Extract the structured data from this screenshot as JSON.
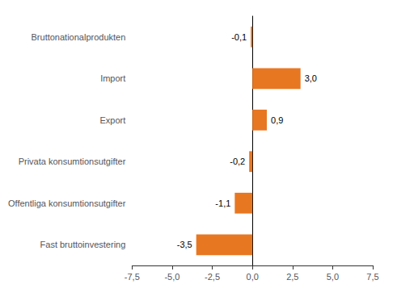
{
  "chart_data": {
    "type": "bar",
    "orientation": "horizontal",
    "categories": [
      "Fast bruttoinvestering",
      "Offentliga konsumtionsutgifter",
      "Privata konsumtionsutgifter",
      "Export",
      "Import",
      "Bruttonationalprodukten"
    ],
    "values": [
      -3.5,
      -1.1,
      -0.2,
      0.9,
      3.0,
      -0.1
    ],
    "value_labels": [
      "-3,5",
      "-1,1",
      "-0,2",
      "0,9",
      "3,0",
      "-0,1"
    ],
    "data_labels": true,
    "color": "#E87722",
    "xlim": [
      -7.5,
      7.5
    ],
    "xticks": [
      {
        "value": -7.5,
        "label": "-7,5"
      },
      {
        "value": -5.0,
        "label": "-5,0"
      },
      {
        "value": -2.5,
        "label": "-2,5"
      },
      {
        "value": 0.0,
        "label": "0,0"
      },
      {
        "value": 2.5,
        "label": "2,5"
      },
      {
        "value": 5.0,
        "label": "5,0"
      },
      {
        "value": 7.5,
        "label": "7,5"
      }
    ],
    "grid": false
  }
}
